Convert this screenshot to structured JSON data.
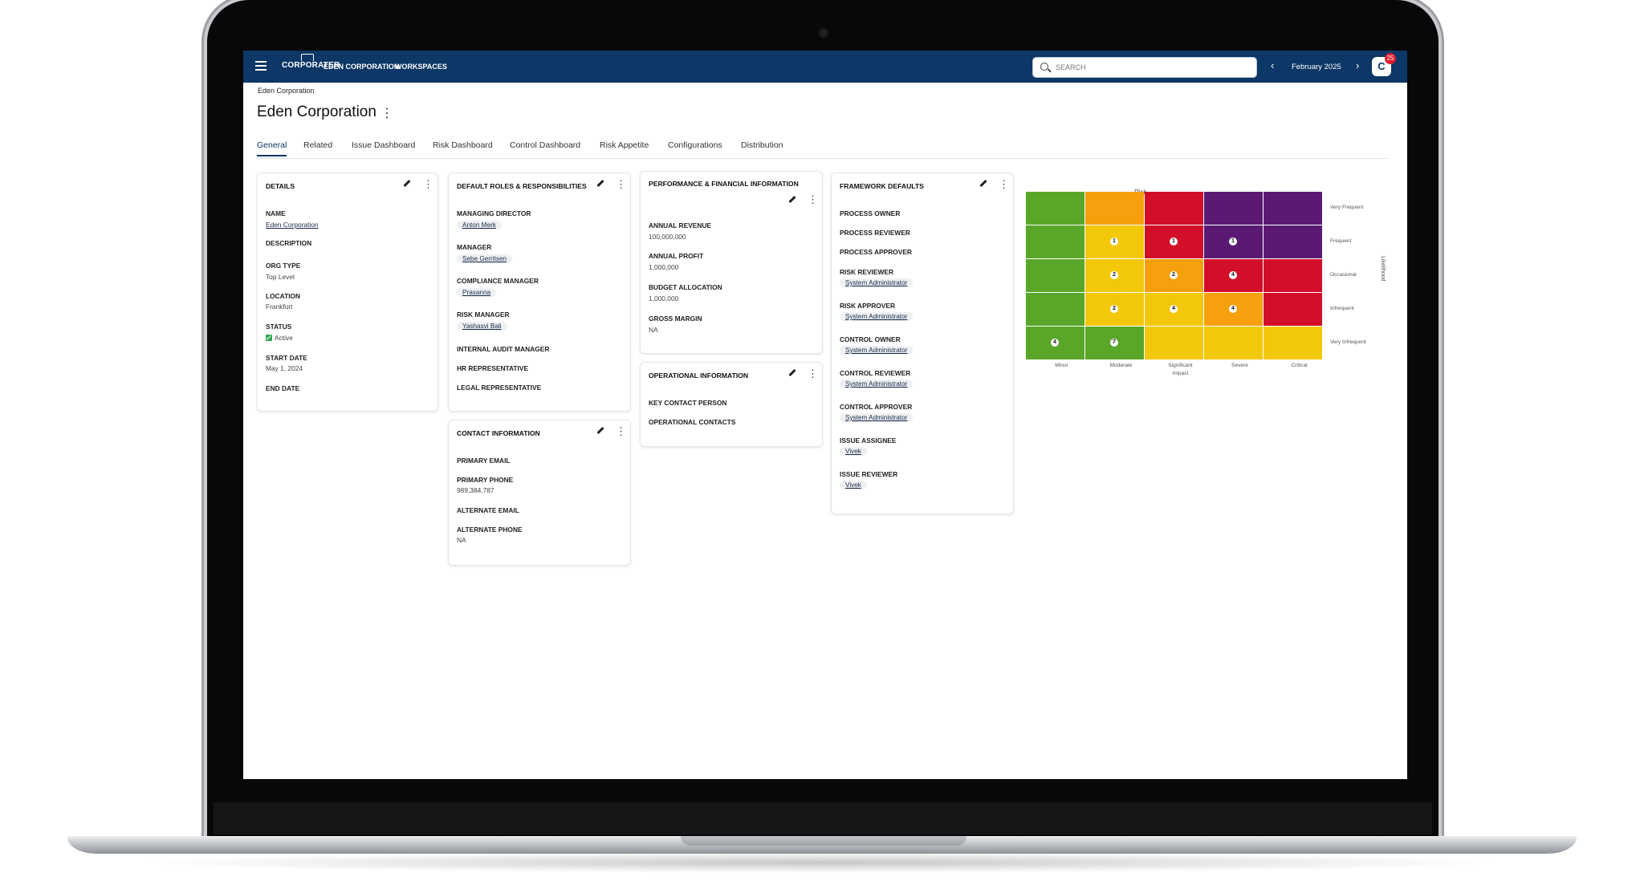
{
  "topbar": {
    "logo": "CORPORATER",
    "nav": [
      "EDEN CORPORATION",
      "WORKSPACES"
    ],
    "search_placeholder": "SEARCH",
    "period": "February 2025",
    "avatar_initial": "C",
    "notification_count": "25"
  },
  "breadcrumb": "Eden Corporation",
  "page_title": "Eden Corporation",
  "tabs": [
    "General",
    "Related",
    "Issue Dashboard",
    "Risk Dashboard",
    "Control Dashboard",
    "Risk Appetite",
    "Configurations",
    "Distribution"
  ],
  "details": {
    "title": "DETAILS",
    "name_label": "NAME",
    "name_value": "Eden Corporation",
    "description_label": "DESCRIPTION",
    "org_type_label": "ORG TYPE",
    "org_type_value": "Top Level",
    "location_label": "LOCATION",
    "location_value": "Frankfurt",
    "status_label": "STATUS",
    "status_value": "Active",
    "start_date_label": "START DATE",
    "start_date_value": "May 1, 2024",
    "end_date_label": "END DATE"
  },
  "roles": {
    "title": "DEFAULT ROLES & RESPONSIBILITIES",
    "managing_director_label": "MANAGING DIRECTOR",
    "managing_director_value": "Anton Merk",
    "manager_label": "MANAGER",
    "manager_value": "Sebe Gerritsen",
    "compliance_manager_label": "COMPLIANCE MANAGER",
    "compliance_manager_value": "Prasanna",
    "risk_manager_label": "RISK MANAGER",
    "risk_manager_value": "Yashasvi Bali",
    "internal_audit_label": "INTERNAL AUDIT MANAGER",
    "hr_label": "HR REPRESENTATIVE",
    "legal_label": "LEGAL REPRESENTATIVE"
  },
  "contact": {
    "title": "CONTACT INFORMATION",
    "primary_email_label": "PRIMARY EMAIL",
    "primary_phone_label": "PRIMARY PHONE",
    "primary_phone_value": "989,384,787",
    "alternate_email_label": "ALTERNATE EMAIL",
    "alternate_phone_label": "ALTERNATE PHONE",
    "alternate_phone_value": "NA"
  },
  "performance": {
    "title": "PERFORMANCE & FINANCIAL INFORMATION",
    "annual_revenue_label": "ANNUAL REVENUE",
    "annual_revenue_value": "100,000,000",
    "annual_profit_label": "ANNUAL PROFIT",
    "annual_profit_value": "1,000,000",
    "budget_label": "BUDGET ALLOCATION",
    "budget_value": "1,000,000",
    "gross_margin_label": "GROSS MARGIN",
    "gross_margin_value": "NA"
  },
  "operational": {
    "title": "OPERATIONAL INFORMATION",
    "key_contact_label": "KEY CONTACT PERSON",
    "operational_contacts_label": "OPERATIONAL CONTACTS"
  },
  "framework": {
    "title": "FRAMEWORK DEFAULTS",
    "process_owner_label": "PROCESS OWNER",
    "process_reviewer_label": "PROCESS REVIEWER",
    "process_approver_label": "PROCESS APPROVER",
    "risk_reviewer_label": "RISK REVIEWER",
    "risk_reviewer_value": "System Administrator",
    "risk_approver_label": "RISK APPROVER",
    "risk_approver_value": "System Administrator",
    "control_owner_label": "CONTROL OWNER",
    "control_owner_value": "System Administrator",
    "control_reviewer_label": "CONTROL REVIEWER",
    "control_reviewer_value": "System Administrator",
    "control_approver_label": "CONTROL APPROVER",
    "control_approver_value": "System Administrator",
    "issue_assignee_label": "ISSUE ASSIGNEE",
    "issue_assignee_value": "Vivek",
    "issue_reviewer_label": "ISSUE REVIEWER",
    "issue_reviewer_value": "Vivek"
  },
  "heatmap": {
    "title": "Risk",
    "y_axis_label": "Likelihood",
    "x_axis_label": "Impact",
    "rows": [
      "Very Frequent",
      "Frequent",
      "Occasional",
      "Infrequent",
      "Very Infrequent"
    ],
    "columns": [
      "Minor",
      "Moderate",
      "Significant",
      "Severe",
      "Critical"
    ],
    "colors": {
      "green": "#5aa629",
      "orange": "#f6a00d",
      "yellow": "#f3c80a",
      "red": "#d20e28",
      "purple": "#5a1a74"
    },
    "grid": [
      [
        "green",
        "orange",
        "red",
        "purple",
        "purple"
      ],
      [
        "green",
        "yellow",
        "red",
        "purple",
        "purple"
      ],
      [
        "green",
        "yellow",
        "orange",
        "red",
        "red"
      ],
      [
        "green",
        "yellow",
        "yellow",
        "orange",
        "red"
      ],
      [
        "green",
        "green",
        "yellow",
        "yellow",
        "yellow"
      ]
    ],
    "counts": [
      [
        null,
        null,
        null,
        null,
        null
      ],
      [
        null,
        "1",
        "1",
        "1",
        null
      ],
      [
        null,
        "2",
        "2",
        "4",
        null
      ],
      [
        null,
        "2",
        "4",
        "4",
        null
      ],
      [
        "4",
        "7",
        null,
        null,
        null
      ]
    ]
  }
}
